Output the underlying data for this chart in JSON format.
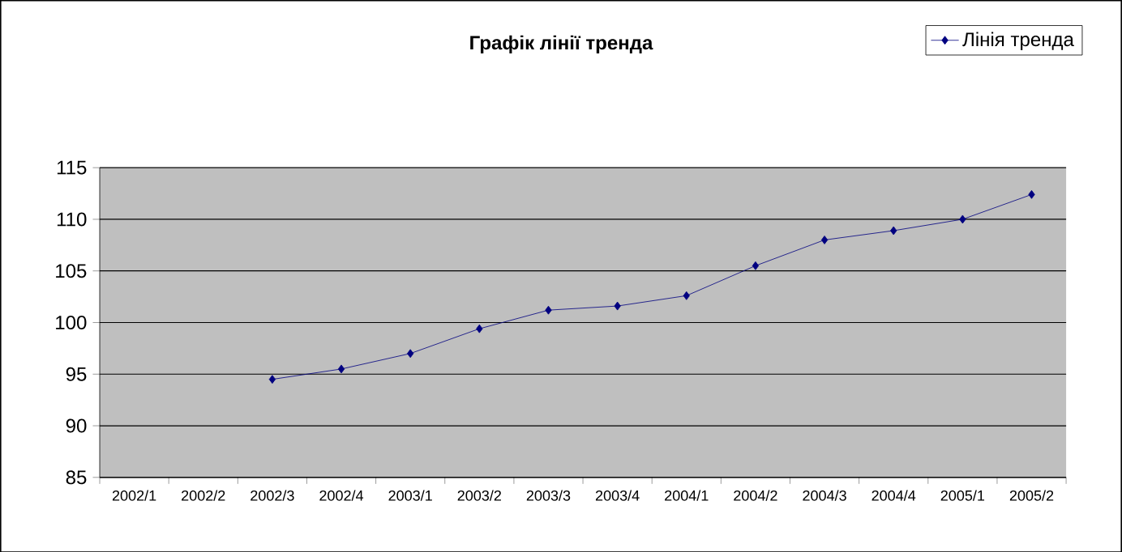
{
  "chart_data": {
    "type": "line",
    "title": "Графік лінії тренда",
    "categories": [
      "2002/1",
      "2002/2",
      "2002/3",
      "2002/4",
      "2003/1",
      "2003/2",
      "2003/3",
      "2003/4",
      "2004/1",
      "2004/2",
      "2004/3",
      "2004/4",
      "2005/1",
      "2005/2"
    ],
    "series": [
      {
        "name": "Лінія тренда",
        "color": "#000080",
        "values": [
          null,
          null,
          94.5,
          95.5,
          97,
          99.4,
          101.2,
          101.6,
          102.6,
          105.5,
          108,
          108.9,
          110,
          112.4
        ]
      }
    ],
    "ylim": [
      85,
      115
    ],
    "yticks": [
      85,
      90,
      95,
      100,
      105,
      110,
      115
    ],
    "grid": "y",
    "legend": "top right",
    "marker": "diamond",
    "line_style": "solid"
  }
}
